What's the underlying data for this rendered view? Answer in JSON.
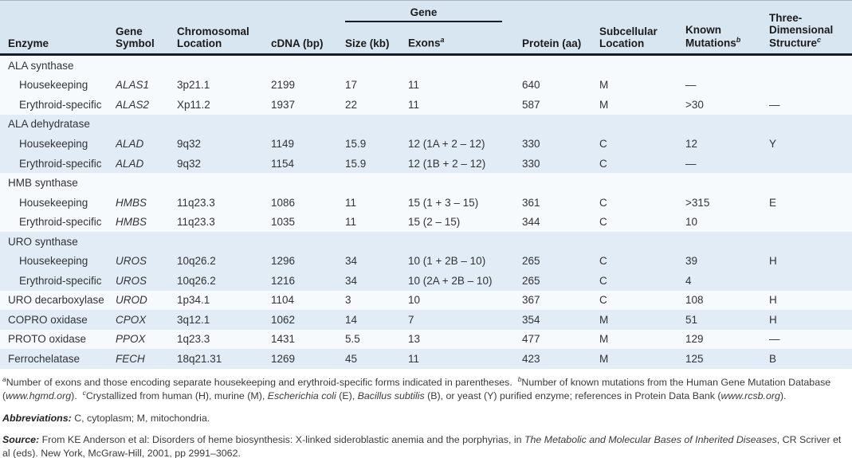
{
  "colors": {
    "header_bg": "#d8e6f2",
    "stripe_blue": "#e1ecf6",
    "stripe_white": "#f7fafd",
    "rule_dark": "#171d28",
    "text": "#333333"
  },
  "table": {
    "header": {
      "enzyme": "Enzyme",
      "gene_symbol": "Gene\nSymbol",
      "chromosomal_location": "Chromosomal\nLocation",
      "cdna": "cDNA (bp)",
      "gene_group": "Gene",
      "size": "Size (kb)",
      "exons": "Exons",
      "exons_sup": "a",
      "protein": "Protein (aa)",
      "subcellular": "Subcellular\nLocation",
      "mutations": "Known\nMutations",
      "mutations_sup": "b",
      "structure": "Three-\nDimensional\nStructure",
      "structure_sup": "c"
    },
    "rows": [
      {
        "type": "group",
        "enzyme": "ALA synthase"
      },
      {
        "type": "sub",
        "enzyme": "Housekeeping",
        "gene": "ALAS1",
        "location": "3p21.1",
        "cdna": "2199",
        "size": "17",
        "exons": "11",
        "protein": "640",
        "subcellular": "M",
        "mutations": "—",
        "structure": ""
      },
      {
        "type": "sub",
        "enzyme": "Erythroid-specific",
        "gene": "ALAS2",
        "location": "Xp11.2",
        "cdna": "1937",
        "size": "22",
        "exons": "11",
        "protein": "587",
        "subcellular": "M",
        "mutations": ">30",
        "structure": "—"
      },
      {
        "type": "group",
        "enzyme": "ALA dehydratase"
      },
      {
        "type": "sub",
        "enzyme": "Housekeeping",
        "gene": "ALAD",
        "location": "9q32",
        "cdna": "1149",
        "size": "15.9",
        "exons": "12 (1A + 2 – 12)",
        "protein": "330",
        "subcellular": "C",
        "mutations": "12",
        "structure": "Y"
      },
      {
        "type": "sub",
        "enzyme": "Erythroid-specific",
        "gene": "ALAD",
        "location": "9q32",
        "cdna": "1154",
        "size": "15.9",
        "exons": "12 (1B + 2 – 12)",
        "protein": "330",
        "subcellular": "C",
        "mutations": "—",
        "structure": ""
      },
      {
        "type": "group",
        "enzyme": "HMB synthase"
      },
      {
        "type": "sub",
        "enzyme": "Housekeeping",
        "gene": "HMBS",
        "location": "11q23.3",
        "cdna": "1086",
        "size": "11",
        "exons": "15 (1 + 3 – 15)",
        "protein": "361",
        "subcellular": "C",
        "mutations": ">315",
        "structure": "E"
      },
      {
        "type": "sub",
        "enzyme": "Erythroid-specific",
        "gene": "HMBS",
        "location": "11q23.3",
        "cdna": "1035",
        "size": "11",
        "exons": "15 (2 – 15)",
        "protein": "344",
        "subcellular": "C",
        "mutations": "10",
        "structure": ""
      },
      {
        "type": "group",
        "enzyme": "URO synthase"
      },
      {
        "type": "sub",
        "enzyme": "Housekeeping",
        "gene": "UROS",
        "location": "10q26.2",
        "cdna": "1296",
        "size": "34",
        "exons": "10 (1 + 2B – 10)",
        "protein": "265",
        "subcellular": "C",
        "mutations": "39",
        "structure": "H"
      },
      {
        "type": "sub",
        "enzyme": "Erythroid-specific",
        "gene": "UROS",
        "location": "10q26.2",
        "cdna": "1216",
        "size": "34",
        "exons": "10 (2A + 2B – 10)",
        "protein": "265",
        "subcellular": "C",
        "mutations": "4",
        "structure": ""
      },
      {
        "type": "single",
        "enzyme": "URO decarboxylase",
        "gene": "UROD",
        "location": "1p34.1",
        "cdna": "1104",
        "size": "3",
        "exons": "10",
        "protein": "367",
        "subcellular": "C",
        "mutations": "108",
        "structure": "H"
      },
      {
        "type": "single",
        "enzyme": "COPRO oxidase",
        "gene": "CPOX",
        "location": "3q12.1",
        "cdna": "1062",
        "size": "14",
        "exons": "7",
        "protein": "354",
        "subcellular": "M",
        "mutations": "51",
        "structure": "H"
      },
      {
        "type": "single",
        "enzyme": "PROTO oxidase",
        "gene": "PPOX",
        "location": "1q23.3",
        "cdna": "1431",
        "size": "5.5",
        "exons": "13",
        "protein": "477",
        "subcellular": "M",
        "mutations": "129",
        "structure": "—"
      },
      {
        "type": "single",
        "enzyme": "Ferrochelatase",
        "gene": "FECH",
        "location": "18q21.31",
        "cdna": "1269",
        "size": "45",
        "exons": "11",
        "protein": "423",
        "subcellular": "M",
        "mutations": "125",
        "structure": "B"
      }
    ]
  },
  "footnote": {
    "parts": [
      {
        "sup": "a"
      },
      {
        "t": "Number of exons and those encoding separate housekeeping and erythroid-specific forms indicated in parentheses.  "
      },
      {
        "sup": "b"
      },
      {
        "t": "Number of known mutations from the Human Gene Mutation Database ("
      },
      {
        "t": "www.hgmd.org",
        "i": true
      },
      {
        "t": ").  "
      },
      {
        "sup": "c"
      },
      {
        "t": "Crystallized from human (H), murine (M), "
      },
      {
        "t": "Escherichia coli",
        "i": true
      },
      {
        "t": " (E), "
      },
      {
        "t": "Bacillus subtilis",
        "i": true
      },
      {
        "t": " (B), or yeast (Y) purified enzyme; references in Protein Data Bank ("
      },
      {
        "t": "www.rcsb.org",
        "i": true
      },
      {
        "t": ")."
      }
    ]
  },
  "abbreviations": {
    "parts": [
      {
        "t": "Abbreviations:",
        "bi": true
      },
      {
        "t": " C, cytoplasm; M, mitochondria."
      }
    ]
  },
  "source": {
    "parts": [
      {
        "t": "Source:",
        "bi": true
      },
      {
        "t": " From KE Anderson et al: Disorders of heme biosynthesis: X-linked sideroblastic anemia and the porphyrias, in "
      },
      {
        "t": "The Metabolic and Molecular Bases of Inherited Diseases",
        "i": true
      },
      {
        "t": ", CR Scriver et al (eds). New York, McGraw-Hill, 2001, pp 2991–3062."
      }
    ]
  }
}
